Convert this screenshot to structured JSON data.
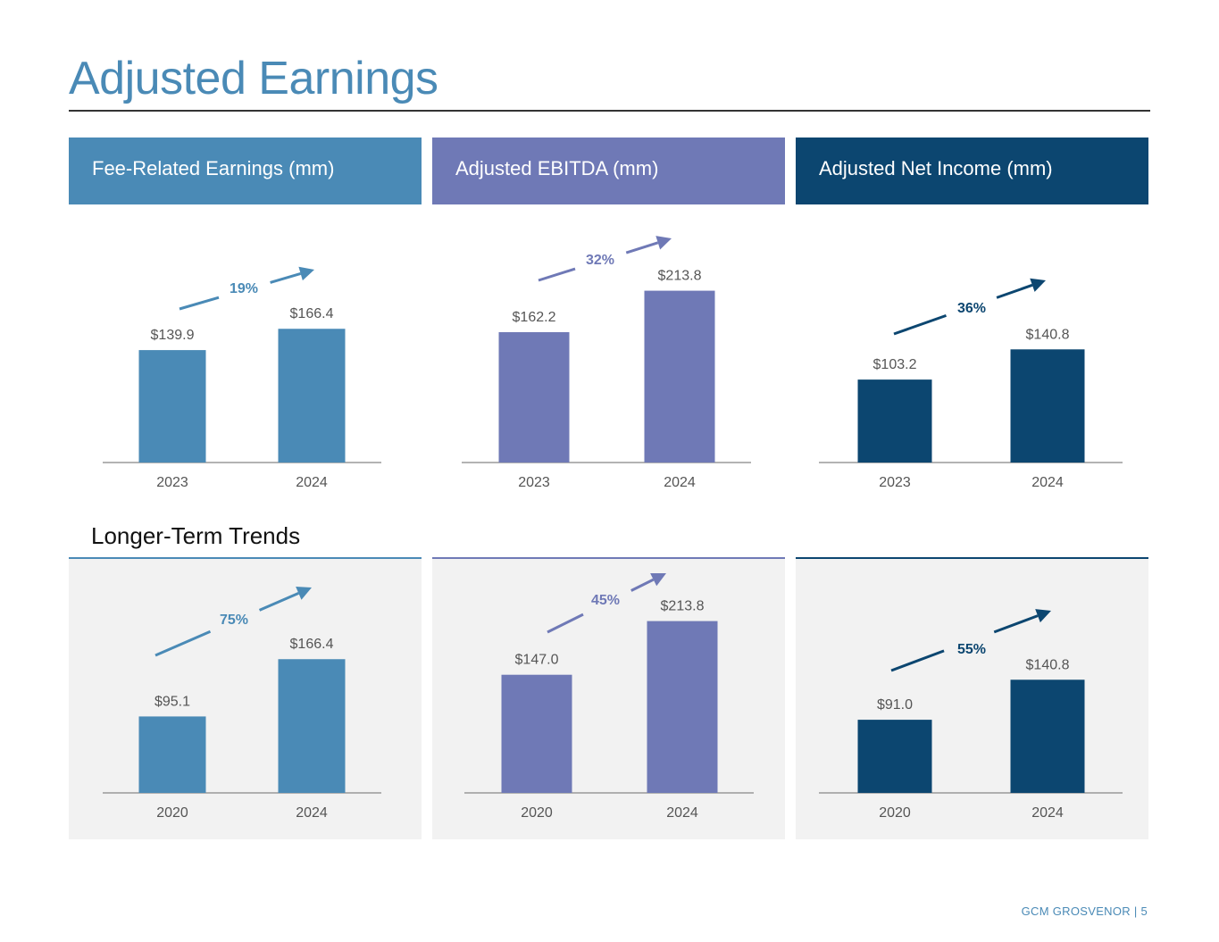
{
  "page": {
    "title": "Adjusted Earnings",
    "trends_heading": "Longer-Term Trends",
    "footer": "GCM GROSVENOR | 5"
  },
  "headers": [
    {
      "label": "Fee-Related Earnings (mm)",
      "color": "#4a8ab6"
    },
    {
      "label": "Adjusted EBITDA (mm)",
      "color": "#6f79b6"
    },
    {
      "label": "Adjusted Net Income (mm)",
      "color": "#0c4670"
    }
  ],
  "chart_data": [
    {
      "type": "bar",
      "color": "#4a8ab6",
      "categories": [
        "2023",
        "2024"
      ],
      "values": [
        139.9,
        166.4
      ],
      "labels": [
        "$139.9",
        "$166.4"
      ],
      "growth": "19%"
    },
    {
      "type": "bar",
      "color": "#6f79b6",
      "categories": [
        "2023",
        "2024"
      ],
      "values": [
        162.2,
        213.8
      ],
      "labels": [
        "$162.2",
        "$213.8"
      ],
      "growth": "32%"
    },
    {
      "type": "bar",
      "color": "#0c4670",
      "categories": [
        "2023",
        "2024"
      ],
      "values": [
        103.2,
        140.8
      ],
      "labels": [
        "$103.2",
        "$140.8"
      ],
      "growth": "36%"
    },
    {
      "type": "bar",
      "color": "#4a8ab6",
      "categories": [
        "2020",
        "2024"
      ],
      "values": [
        95.1,
        166.4
      ],
      "labels": [
        "$95.1",
        "$166.4"
      ],
      "growth": "75%"
    },
    {
      "type": "bar",
      "color": "#6f79b6",
      "categories": [
        "2020",
        "2024"
      ],
      "values": [
        147.0,
        213.8
      ],
      "labels": [
        "$147.0",
        "$213.8"
      ],
      "growth": "45%"
    },
    {
      "type": "bar",
      "color": "#0c4670",
      "categories": [
        "2020",
        "2024"
      ],
      "values": [
        91.0,
        140.8
      ],
      "labels": [
        "$91.0",
        "$140.8"
      ],
      "growth": "55%"
    }
  ]
}
